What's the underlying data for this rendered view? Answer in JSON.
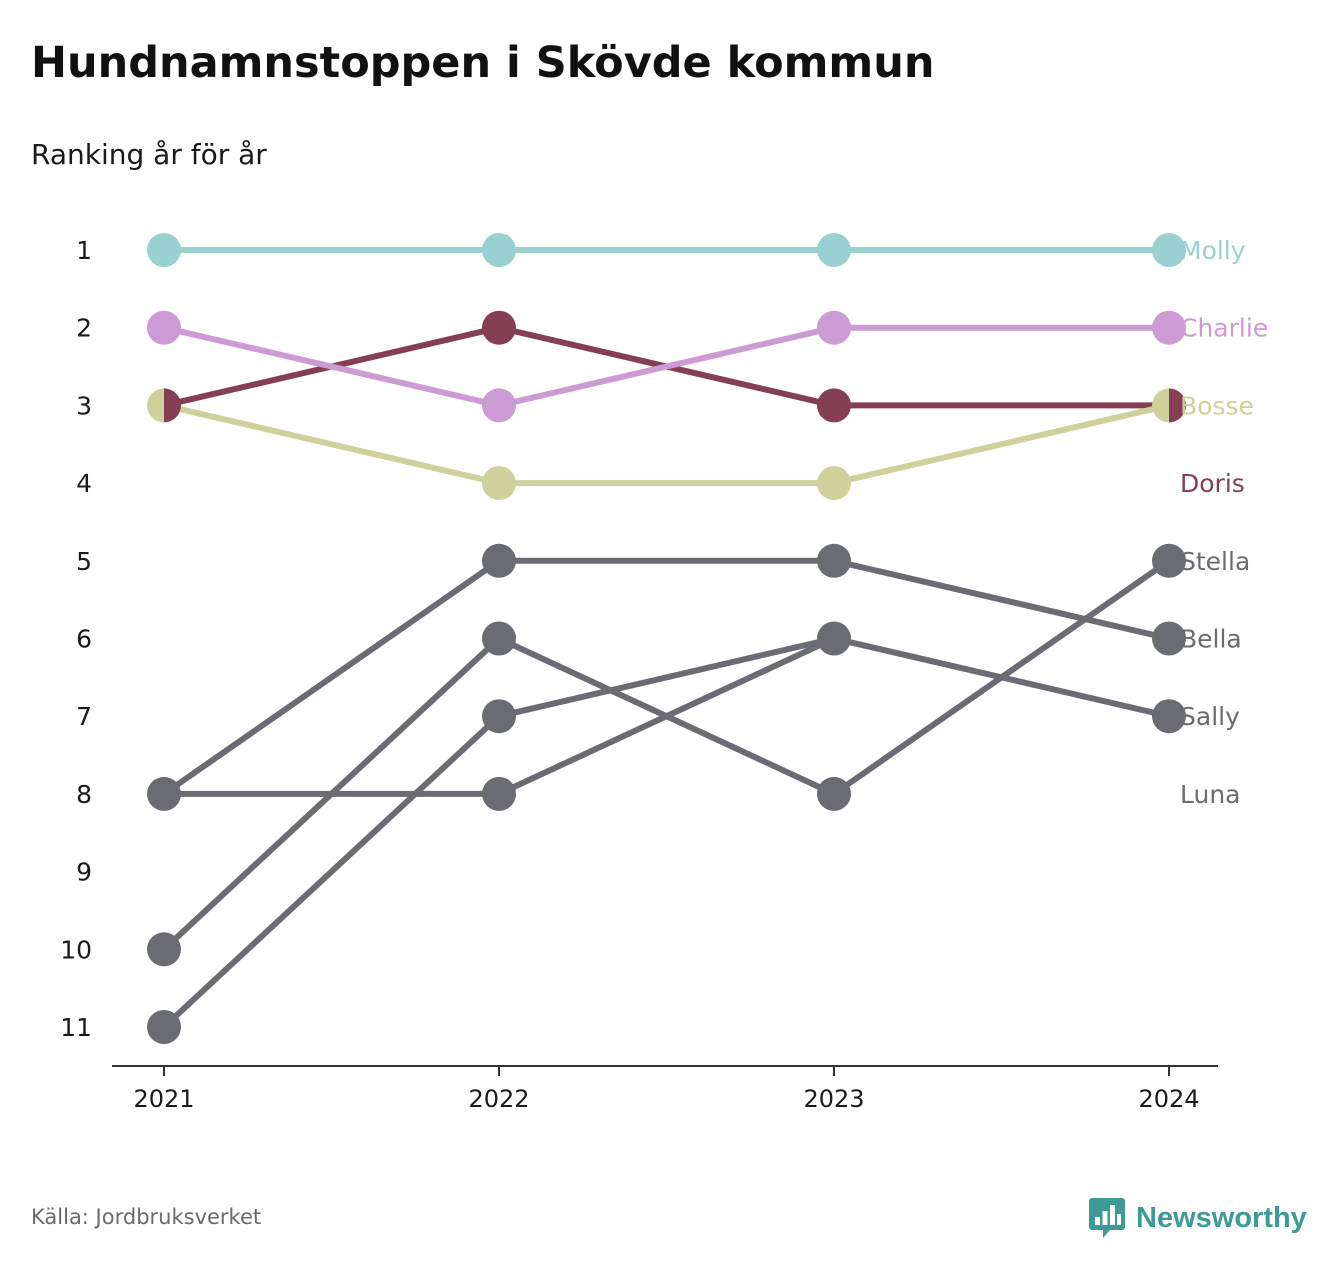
{
  "title": "Hundnamnstoppen i Skövde kommun",
  "subtitle": "Ranking år för år",
  "source": "Källa: Jordbruksverket",
  "brand": "Newsworthy",
  "chart_data": {
    "type": "line",
    "x": [
      "2021",
      "2022",
      "2023",
      "2024"
    ],
    "y_ticks": [
      "1",
      "2",
      "3",
      "4",
      "5",
      "6",
      "7",
      "8",
      "9",
      "10",
      "11"
    ],
    "ylim": [
      1,
      11
    ],
    "y_inverted": true,
    "grid": false,
    "legend": "direct labels at right",
    "series": [
      {
        "name": "Molly",
        "color": "#99d0d0",
        "values": [
          1,
          1,
          1,
          1
        ]
      },
      {
        "name": "Charlie",
        "color": "#cc9bd3",
        "values": [
          2,
          3,
          2,
          2
        ]
      },
      {
        "name": "Bosse",
        "color": "#cfd09b",
        "values": [
          3,
          4,
          4,
          3
        ]
      },
      {
        "name": "Doris",
        "color": "#843f54",
        "values": [
          3,
          2,
          3,
          3
        ]
      },
      {
        "name": "Stella",
        "color": "#6b6b73",
        "values": [
          10,
          6,
          8,
          5
        ]
      },
      {
        "name": "Bella",
        "color": "#6b6b73",
        "values": [
          8,
          5,
          5,
          6
        ]
      },
      {
        "name": "Sally",
        "color": "#6b6b73",
        "values": [
          11,
          7,
          6,
          7
        ]
      },
      {
        "name": "Luna",
        "color": "#6b6b73",
        "values": [
          8,
          8,
          6,
          null
        ]
      }
    ],
    "label_ranks": {
      "Molly": 1,
      "Charlie": 2,
      "Bosse": 3,
      "Doris": 4,
      "Stella": 5,
      "Bella": 6,
      "Sally": 7,
      "Luna": 8
    }
  }
}
